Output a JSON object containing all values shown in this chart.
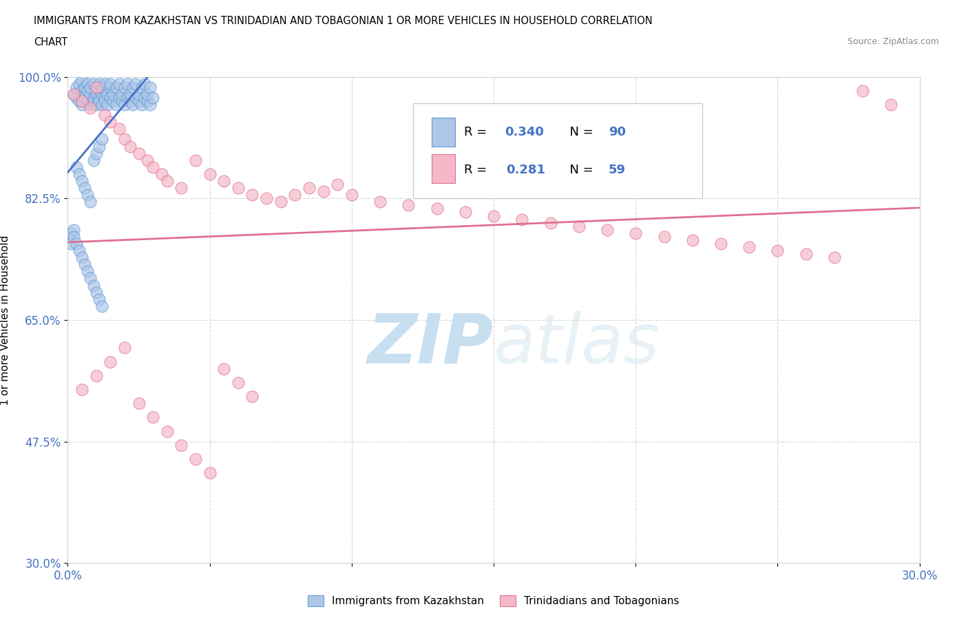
{
  "title_line1": "IMMIGRANTS FROM KAZAKHSTAN VS TRINIDADIAN AND TOBAGONIAN 1 OR MORE VEHICLES IN HOUSEHOLD CORRELATION",
  "title_line2": "CHART",
  "source_text": "Source: ZipAtlas.com",
  "ylabel": "1 or more Vehicles in Household",
  "xlim": [
    0.0,
    0.3
  ],
  "ylim": [
    0.3,
    1.0
  ],
  "xticks": [
    0.0,
    0.05,
    0.1,
    0.15,
    0.2,
    0.25,
    0.3
  ],
  "xticklabels": [
    "0.0%",
    "",
    "",
    "",
    "",
    "",
    "30.0%"
  ],
  "yticks": [
    0.3,
    0.475,
    0.65,
    0.825,
    1.0
  ],
  "yticklabels": [
    "30.0%",
    "47.5%",
    "65.0%",
    "82.5%",
    "100.0%"
  ],
  "blue_face_color": "#aec6e8",
  "blue_edge_color": "#5b9bd5",
  "pink_face_color": "#f4b8c8",
  "pink_edge_color": "#e07090",
  "blue_line_color": "#4472c4",
  "pink_line_color": "#e07090",
  "R_blue": 0.34,
  "N_blue": 90,
  "R_pink": 0.281,
  "N_pink": 59,
  "legend_blue_label": "Immigrants from Kazakhstan",
  "legend_pink_label": "Trinidadians and Tobagonians",
  "watermark_zip": "ZIP",
  "watermark_atlas": "atlas",
  "watermark_color": "#c8dff0",
  "grid_color": "#cccccc",
  "tick_label_color": "#4472c4",
  "blue_scatter_x": [
    0.002,
    0.003,
    0.003,
    0.004,
    0.004,
    0.005,
    0.005,
    0.005,
    0.006,
    0.006,
    0.006,
    0.007,
    0.007,
    0.007,
    0.008,
    0.008,
    0.008,
    0.009,
    0.009,
    0.009,
    0.01,
    0.01,
    0.01,
    0.011,
    0.011,
    0.011,
    0.012,
    0.012,
    0.012,
    0.013,
    0.013,
    0.013,
    0.014,
    0.014,
    0.015,
    0.015,
    0.015,
    0.016,
    0.016,
    0.017,
    0.017,
    0.018,
    0.018,
    0.019,
    0.019,
    0.02,
    0.02,
    0.021,
    0.021,
    0.022,
    0.022,
    0.023,
    0.023,
    0.024,
    0.024,
    0.025,
    0.025,
    0.026,
    0.026,
    0.027,
    0.027,
    0.028,
    0.028,
    0.029,
    0.029,
    0.03,
    0.003,
    0.004,
    0.005,
    0.006,
    0.007,
    0.008,
    0.009,
    0.01,
    0.011,
    0.012,
    0.001,
    0.001,
    0.002,
    0.002,
    0.003,
    0.004,
    0.005,
    0.006,
    0.007,
    0.008,
    0.009,
    0.01,
    0.011,
    0.012
  ],
  "blue_scatter_y": [
    0.975,
    0.985,
    0.97,
    0.99,
    0.965,
    0.98,
    0.995,
    0.96,
    0.975,
    0.985,
    0.97,
    0.99,
    0.965,
    0.98,
    0.975,
    0.96,
    0.985,
    0.97,
    0.99,
    0.965,
    0.975,
    0.96,
    0.985,
    0.97,
    0.99,
    0.965,
    0.975,
    0.96,
    0.985,
    0.97,
    0.99,
    0.965,
    0.975,
    0.96,
    0.985,
    0.97,
    0.99,
    0.965,
    0.975,
    0.96,
    0.985,
    0.97,
    0.99,
    0.965,
    0.975,
    0.96,
    0.985,
    0.97,
    0.99,
    0.965,
    0.975,
    0.96,
    0.985,
    0.97,
    0.99,
    0.965,
    0.975,
    0.96,
    0.985,
    0.97,
    0.99,
    0.965,
    0.975,
    0.96,
    0.985,
    0.97,
    0.87,
    0.86,
    0.85,
    0.84,
    0.83,
    0.82,
    0.88,
    0.89,
    0.9,
    0.91,
    0.775,
    0.76,
    0.78,
    0.77,
    0.76,
    0.75,
    0.74,
    0.73,
    0.72,
    0.71,
    0.7,
    0.69,
    0.68,
    0.67
  ],
  "pink_scatter_x": [
    0.002,
    0.005,
    0.008,
    0.01,
    0.013,
    0.015,
    0.018,
    0.02,
    0.022,
    0.025,
    0.028,
    0.03,
    0.033,
    0.035,
    0.04,
    0.045,
    0.05,
    0.055,
    0.06,
    0.065,
    0.07,
    0.075,
    0.08,
    0.085,
    0.09,
    0.095,
    0.1,
    0.11,
    0.12,
    0.13,
    0.14,
    0.15,
    0.16,
    0.17,
    0.18,
    0.19,
    0.2,
    0.21,
    0.22,
    0.23,
    0.24,
    0.25,
    0.26,
    0.27,
    0.28,
    0.29,
    0.005,
    0.01,
    0.015,
    0.02,
    0.025,
    0.03,
    0.035,
    0.04,
    0.045,
    0.05,
    0.055,
    0.06,
    0.065
  ],
  "pink_scatter_y": [
    0.975,
    0.965,
    0.955,
    0.985,
    0.945,
    0.935,
    0.925,
    0.91,
    0.9,
    0.89,
    0.88,
    0.87,
    0.86,
    0.85,
    0.84,
    0.88,
    0.86,
    0.85,
    0.84,
    0.83,
    0.825,
    0.82,
    0.83,
    0.84,
    0.835,
    0.845,
    0.83,
    0.82,
    0.815,
    0.81,
    0.805,
    0.8,
    0.795,
    0.79,
    0.785,
    0.78,
    0.775,
    0.77,
    0.765,
    0.76,
    0.755,
    0.75,
    0.745,
    0.74,
    0.98,
    0.96,
    0.55,
    0.57,
    0.59,
    0.61,
    0.53,
    0.51,
    0.49,
    0.47,
    0.45,
    0.43,
    0.58,
    0.56,
    0.54
  ]
}
